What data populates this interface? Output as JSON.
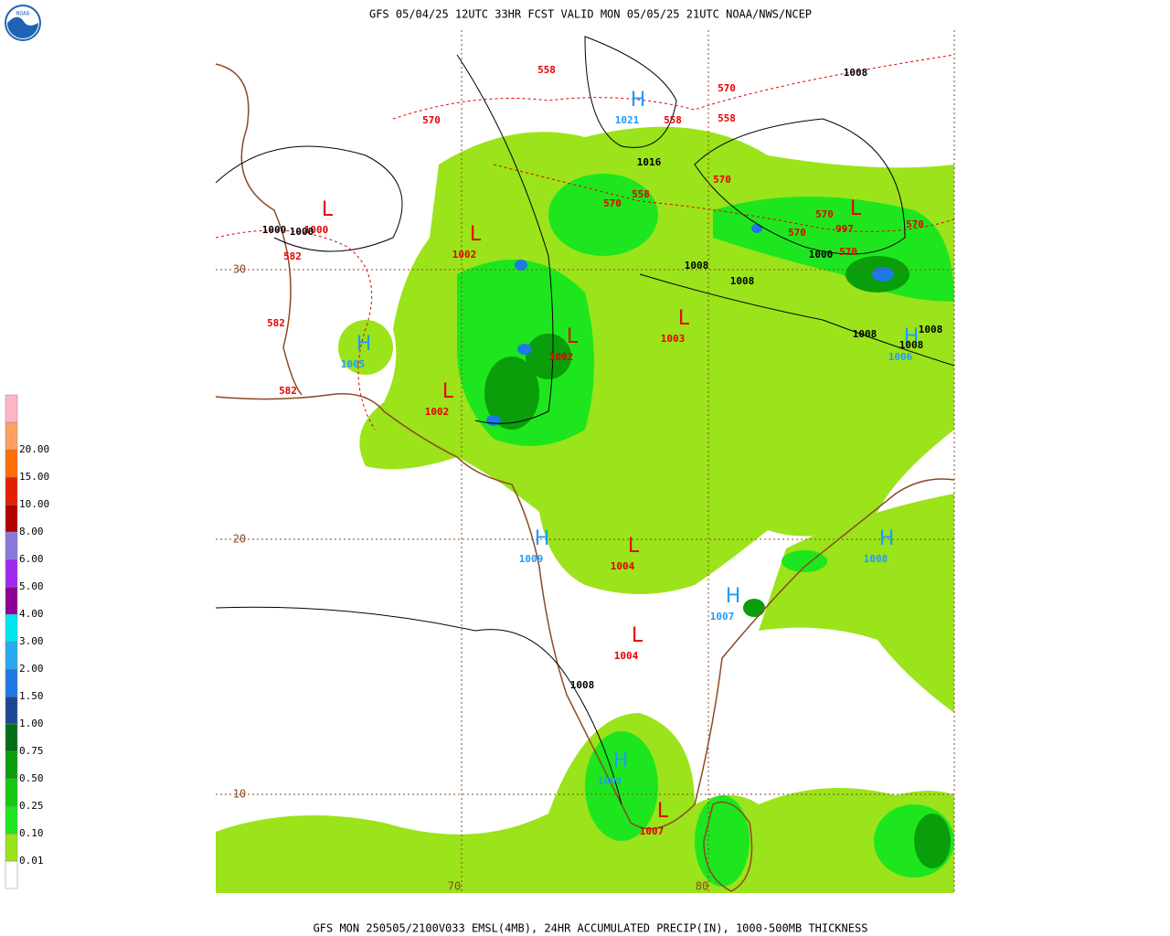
{
  "header": {
    "title": "GFS 05/04/25 12UTC 33HR FCST VALID MON 05/05/25 21UTC NOAA/NWS/NCEP"
  },
  "footer": {
    "caption": "GFS MON 250505/2100V033 EMSL(4MB), 24HR ACCUMULATED PRECIP(IN), 1000-500MB THICKNESS"
  },
  "legend": {
    "labels": [
      "0.01",
      "0.10",
      "0.25",
      "0.50",
      "0.75",
      "1.00",
      "1.50",
      "2.00",
      "3.00",
      "4.00",
      "5.00",
      "6.00",
      "8.00",
      "10.00",
      "15.00",
      "20.00"
    ],
    "colors": [
      "#ffffff",
      "#9be31a",
      "#1ee61e",
      "#14c814",
      "#0a9e0a",
      "#006e14",
      "#1e4696",
      "#1e78e6",
      "#28aaf0",
      "#00e6f0",
      "#8c0096",
      "#a028f0",
      "#8c78dc",
      "#b40000",
      "#e61e00",
      "#ff6e00",
      "#ffa064",
      "#ffb4c8"
    ]
  },
  "map": {
    "lat_labels": [
      "30",
      "20",
      "10"
    ],
    "lon_labels": [
      "70",
      "80"
    ],
    "high_color": "#1e9bff",
    "low_color": "#e60000",
    "isobar_color": "#000000",
    "thickness_color": "#e60000",
    "pressure_centers": [
      {
        "symbol": "H",
        "value": "1021"
      },
      {
        "symbol": "L",
        "value": "1002"
      },
      {
        "symbol": "L",
        "value": "1000"
      },
      {
        "symbol": "H",
        "value": "1005"
      },
      {
        "symbol": "L",
        "value": "1002"
      },
      {
        "symbol": "L",
        "value": "1003"
      },
      {
        "symbol": "L",
        "value": "1002"
      },
      {
        "symbol": "L",
        "value": "997"
      },
      {
        "symbol": "H",
        "value": "1006"
      },
      {
        "symbol": "H",
        "value": "1009"
      },
      {
        "symbol": "L",
        "value": "1004"
      },
      {
        "symbol": "H",
        "value": "1007"
      },
      {
        "symbol": "H",
        "value": "1008"
      },
      {
        "symbol": "L",
        "value": "1004"
      },
      {
        "symbol": "H",
        "value": "1009"
      },
      {
        "symbol": "L",
        "value": "1007"
      }
    ],
    "isobar_labels": [
      "1008",
      "1016",
      "1008",
      "1008",
      "1000",
      "1008",
      "1008",
      "1008",
      "1000",
      "1000",
      "1008"
    ],
    "thickness_labels": [
      "558",
      "570",
      "570",
      "558",
      "558",
      "570",
      "570",
      "558",
      "570",
      "570",
      "570",
      "570",
      "582",
      "582",
      "582"
    ]
  }
}
